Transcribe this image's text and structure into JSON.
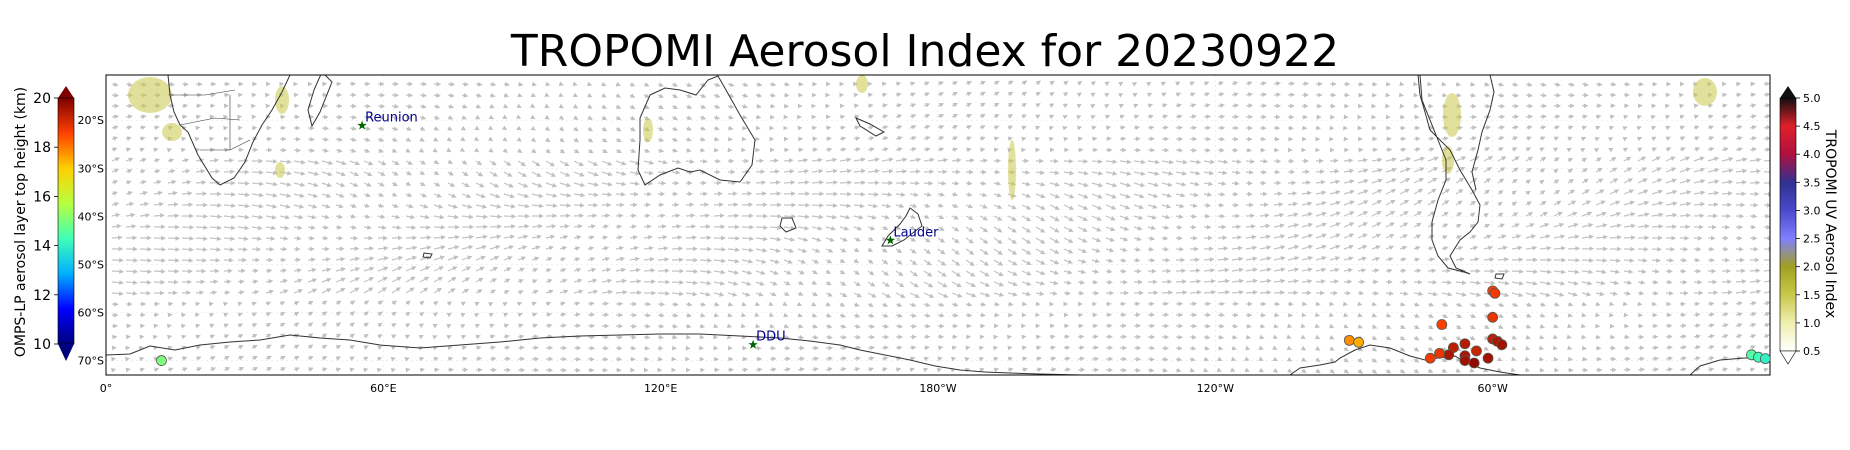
{
  "title": "TROPOMI Aerosol Index for 20230922",
  "map": {
    "lon_ticks": [
      "0°",
      "60°E",
      "120°E",
      "180°W",
      "120°W",
      "60°W"
    ],
    "lat_ticks": [
      "20°S",
      "30°S",
      "40°S",
      "50°S",
      "60°S",
      "70°S"
    ],
    "stations": [
      {
        "name": "Reunion",
        "lon": 55.4,
        "lat": -21.1
      },
      {
        "name": "Lauder",
        "lon": 169.7,
        "lat": -45.0
      },
      {
        "name": "DDU",
        "lon": 140.0,
        "lat": -66.7
      }
    ],
    "colors": {
      "land_outline": "#333333",
      "wind_arrows": "#c0c0c0",
      "station_marker": "#006400",
      "station_label": "#00008b"
    }
  },
  "colorbar_left": {
    "label": "OMPS-LP aerosol layer top height (km)",
    "ticks": [
      "10",
      "12",
      "14",
      "16",
      "18",
      "20"
    ],
    "min": 10,
    "max": 20,
    "colors": [
      "#00007f",
      "#0000ff",
      "#00b0ff",
      "#3fffb7",
      "#b7ff3f",
      "#ffd000",
      "#ff4000",
      "#7f0000"
    ]
  },
  "colorbar_right": {
    "label": "TROPOMI UV Aerosol Index",
    "ticks": [
      "0.5",
      "1.0",
      "1.5",
      "2.0",
      "2.5",
      "3.0",
      "3.5",
      "4.0",
      "4.5",
      "5.0"
    ],
    "min": 0.5,
    "max": 5.0,
    "colors": [
      "#ffffff",
      "#efefb0",
      "#c8c84a",
      "#a0a020",
      "#8080ff",
      "#4a4acc",
      "#303090",
      "#b01040",
      "#e0202a",
      "#101010"
    ]
  },
  "omps_points": [
    {
      "lon": 12.0,
      "lat": -70.0,
      "height_km": 15.0
    },
    {
      "lon": -91.0,
      "lat": -65.8,
      "height_km": 17.8
    },
    {
      "lon": -89.0,
      "lat": -66.2,
      "height_km": 17.5
    },
    {
      "lon": -71.0,
      "lat": -62.5,
      "height_km": 18.6
    },
    {
      "lon": -60.0,
      "lat": -55.5,
      "height_km": 18.6
    },
    {
      "lon": -59.5,
      "lat": -56.0,
      "height_km": 18.7
    },
    {
      "lon": -60.0,
      "lat": -61.0,
      "height_km": 18.8
    },
    {
      "lon": -60.0,
      "lat": -65.5,
      "height_km": 19.3
    },
    {
      "lon": -59.0,
      "lat": -66.0,
      "height_km": 19.5
    },
    {
      "lon": -58.0,
      "lat": -66.7,
      "height_km": 19.6
    },
    {
      "lon": -66.0,
      "lat": -66.5,
      "height_km": 19.4
    },
    {
      "lon": -68.5,
      "lat": -67.3,
      "height_km": 19.3
    },
    {
      "lon": -69.5,
      "lat": -68.8,
      "height_km": 19.5
    },
    {
      "lon": -66.0,
      "lat": -69.0,
      "height_km": 19.5
    },
    {
      "lon": -61.0,
      "lat": -69.5,
      "height_km": 19.6
    },
    {
      "lon": -66.0,
      "lat": -70.0,
      "height_km": 19.6
    },
    {
      "lon": -63.5,
      "lat": -68.0,
      "height_km": 19.2
    },
    {
      "lon": -64.0,
      "lat": -70.5,
      "height_km": 19.8
    },
    {
      "lon": -71.5,
      "lat": -68.5,
      "height_km": 18.8
    },
    {
      "lon": -73.5,
      "lat": -69.5,
      "height_km": 18.7
    },
    {
      "lon": -4.0,
      "lat": -68.8,
      "height_km": 14.5
    },
    {
      "lon": -2.5,
      "lat": -69.3,
      "height_km": 14.3
    },
    {
      "lon": -1.0,
      "lat": -69.6,
      "height_km": 14.0
    }
  ]
}
